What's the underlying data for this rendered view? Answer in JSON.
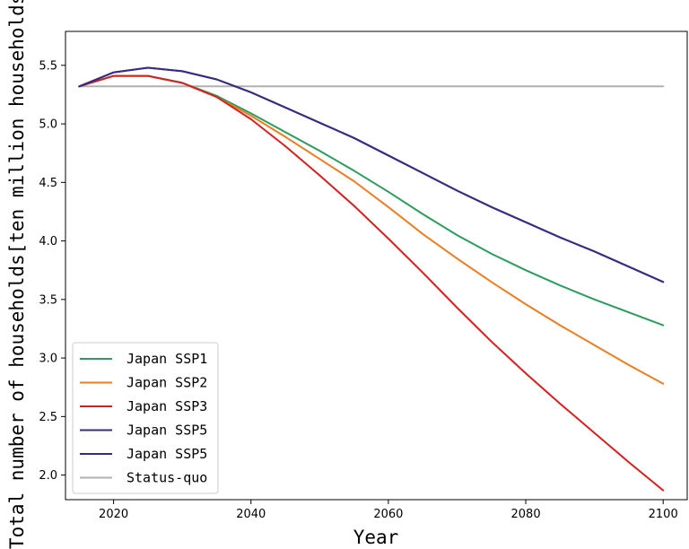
{
  "chart_data": {
    "type": "line",
    "title": "",
    "xlabel": "Year",
    "ylabel": "Total number of households[ten million households]",
    "xlim": [
      2013,
      2103.5
    ],
    "ylim": [
      1.79,
      5.79
    ],
    "x_ticks": [
      2020,
      2040,
      2060,
      2080,
      2100
    ],
    "y_ticks": [
      2.0,
      2.5,
      3.0,
      3.5,
      4.0,
      4.5,
      5.0,
      5.5
    ],
    "grid": false,
    "legend_position": "lower-left",
    "series": [
      {
        "name": "Japan SSP1",
        "color": "#2a9d5c",
        "x": [
          2015,
          2020,
          2025,
          2030,
          2035,
          2040,
          2045,
          2050,
          2055,
          2060,
          2065,
          2070,
          2075,
          2080,
          2085,
          2090,
          2095,
          2100
        ],
        "y": [
          5.32,
          5.41,
          5.41,
          5.35,
          5.24,
          5.09,
          4.93,
          4.77,
          4.6,
          4.42,
          4.23,
          4.05,
          3.89,
          3.75,
          3.62,
          3.5,
          3.39,
          3.28
        ]
      },
      {
        "name": "Japan SSP2",
        "color": "#ee7d1f",
        "x": [
          2015,
          2020,
          2025,
          2030,
          2035,
          2040,
          2045,
          2050,
          2055,
          2060,
          2065,
          2070,
          2075,
          2080,
          2085,
          2090,
          2095,
          2100
        ],
        "y": [
          5.32,
          5.41,
          5.41,
          5.35,
          5.23,
          5.07,
          4.89,
          4.7,
          4.51,
          4.29,
          4.06,
          3.85,
          3.65,
          3.46,
          3.28,
          3.11,
          2.94,
          2.78
        ]
      },
      {
        "name": "Japan SSP3",
        "color": "#d62020",
        "x": [
          2015,
          2020,
          2025,
          2030,
          2035,
          2040,
          2045,
          2050,
          2055,
          2060,
          2065,
          2070,
          2075,
          2080,
          2085,
          2090,
          2095,
          2100
        ],
        "y": [
          5.32,
          5.41,
          5.41,
          5.35,
          5.23,
          5.04,
          4.81,
          4.56,
          4.3,
          4.02,
          3.73,
          3.43,
          3.14,
          2.87,
          2.61,
          2.36,
          2.11,
          1.87
        ]
      },
      {
        "name": "Japan SSP5",
        "color": "#3b2a83",
        "x": [
          2015,
          2020,
          2025,
          2030,
          2035,
          2040,
          2045,
          2050,
          2055,
          2060,
          2065,
          2070,
          2075,
          2080,
          2085,
          2090,
          2095,
          2100
        ],
        "y": [
          5.32,
          5.44,
          5.48,
          5.45,
          5.38,
          5.27,
          5.14,
          5.01,
          4.88,
          4.73,
          4.58,
          4.43,
          4.29,
          4.16,
          4.03,
          3.91,
          3.78,
          3.65
        ]
      },
      {
        "name": "Japan SSP5",
        "color": "#3b2a83",
        "x": [
          2015,
          2020,
          2025,
          2030,
          2035,
          2040,
          2045,
          2050,
          2055,
          2060,
          2065,
          2070,
          2075,
          2080,
          2085,
          2090,
          2095,
          2100
        ],
        "y": [
          5.32,
          5.44,
          5.48,
          5.45,
          5.38,
          5.27,
          5.14,
          5.01,
          4.88,
          4.73,
          4.58,
          4.43,
          4.29,
          4.16,
          4.03,
          3.91,
          3.78,
          3.65
        ]
      },
      {
        "name": "Status-quo",
        "color": "#b0b0b0",
        "x": [
          2015,
          2100
        ],
        "y": [
          5.32,
          5.32
        ]
      }
    ]
  }
}
